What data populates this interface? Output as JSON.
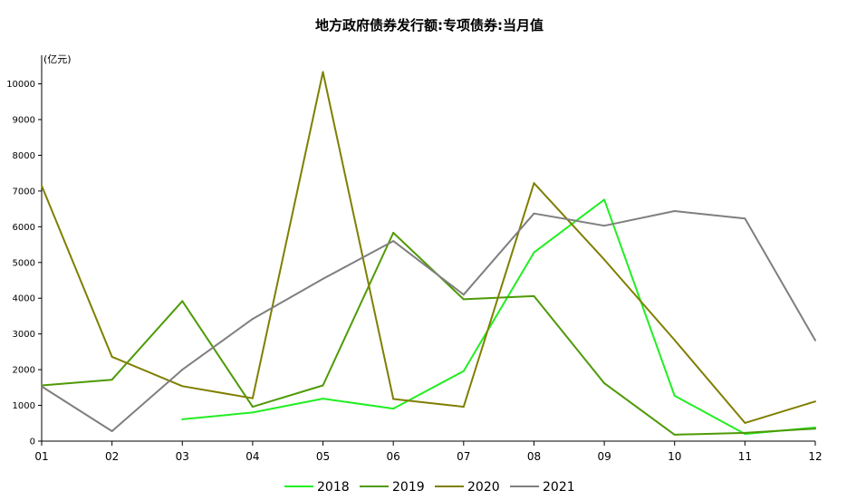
{
  "chart_data": {
    "type": "line",
    "title": "地方政府债券发行额:专项债券:当月值",
    "unit_label": "(亿元)",
    "ylim": [
      0,
      10800
    ],
    "yticks": [
      0,
      1000,
      2000,
      3000,
      4000,
      5000,
      6000,
      7000,
      8000,
      9000,
      10000
    ],
    "categories": [
      "01",
      "02",
      "03",
      "04",
      "05",
      "06",
      "07",
      "08",
      "09",
      "10",
      "11",
      "12"
    ],
    "legend_position": "bottom",
    "grid": false,
    "series": [
      {
        "name": "2018",
        "color": "#22ee22",
        "values": [
          null,
          null,
          610,
          800,
          1190,
          910,
          1960,
          5280,
          6760,
          1270,
          200,
          380
        ]
      },
      {
        "name": "2019",
        "color": "#4e9a06",
        "values": [
          1560,
          1720,
          3920,
          960,
          1560,
          5830,
          3970,
          4060,
          1620,
          180,
          230,
          350
        ]
      },
      {
        "name": "2020",
        "color": "#7f7f00",
        "values": [
          7150,
          2360,
          1540,
          1200,
          10330,
          1180,
          960,
          7220,
          5080,
          2830,
          510,
          1110
        ]
      },
      {
        "name": "2021",
        "color": "#7f7f7f",
        "values": [
          1530,
          280,
          2000,
          3420,
          4540,
          5600,
          4100,
          6370,
          6030,
          6440,
          6230,
          2820
        ]
      }
    ]
  }
}
